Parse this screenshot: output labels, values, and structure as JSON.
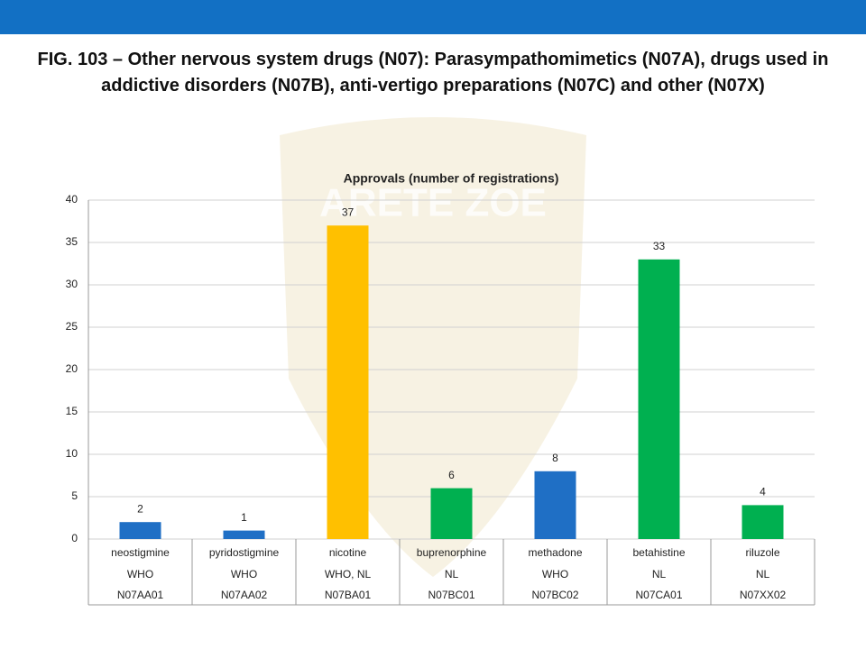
{
  "slide_title": "FIG. 103 – Other nervous system drugs (N07): Parasympathomimetics (N07A), drugs used in addictive disorders (N07B), anti-vertigo preparations (N07C) and other (N07X)",
  "watermark": "ARETE ZOE",
  "chart_data": {
    "type": "bar",
    "title": "Approvals (number of registrations)",
    "categories": [
      "neostigmine",
      "pyridostigmine",
      "nicotine",
      "buprenorphine",
      "methadone",
      "betahistine",
      "riluzole"
    ],
    "sources": [
      "WHO",
      "WHO",
      "WHO, NL",
      "NL",
      "WHO",
      "NL",
      "NL"
    ],
    "codes": [
      "N07AA01",
      "N07AA02",
      "N07BA01",
      "N07BC01",
      "N07BC02",
      "N07CA01",
      "N07XX02"
    ],
    "values": [
      2,
      1,
      37,
      6,
      8,
      33,
      4
    ],
    "colors": [
      "#1f6fc5",
      "#1f6fc5",
      "#ffc000",
      "#00b050",
      "#1f6fc5",
      "#00b050",
      "#00b050"
    ],
    "ylim": [
      0,
      40
    ],
    "yticks": [
      0,
      5,
      10,
      15,
      20,
      25,
      30,
      35,
      40
    ],
    "grid": true
  }
}
